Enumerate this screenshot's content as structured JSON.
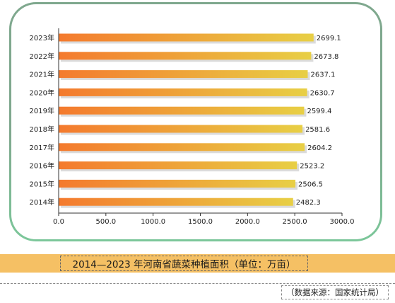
{
  "chart_data": {
    "type": "bar",
    "orientation": "horizontal",
    "categories": [
      "2023年",
      "2022年",
      "2021年",
      "2020年",
      "2019年",
      "2018年",
      "2017年",
      "2016年",
      "2015年",
      "2014年"
    ],
    "values": [
      2699.1,
      2673.8,
      2637.1,
      2630.7,
      2599.4,
      2581.6,
      2604.2,
      2523.2,
      2506.5,
      2482.3
    ],
    "value_labels": [
      "2699.1",
      "2673.8",
      "2637.1",
      "2630.7",
      "2599.4",
      "2581.6",
      "2604.2",
      "2523.2",
      "2506.5",
      "2482.3"
    ],
    "x_ticks": [
      "0.0",
      "500.0",
      "1000.0",
      "1500.0",
      "2000.0",
      "2500.0",
      "3000.0"
    ],
    "xlim": [
      0,
      3000
    ],
    "grid": false,
    "colors": {
      "bar_start": "#f47a2e",
      "bar_end": "#e8cf45",
      "bar_shadow": "#bdbdbd"
    },
    "title": "2014—2023 年河南省蔬菜种植面积（单位：万亩）"
  },
  "source": "（数据来源：国家统计局）"
}
